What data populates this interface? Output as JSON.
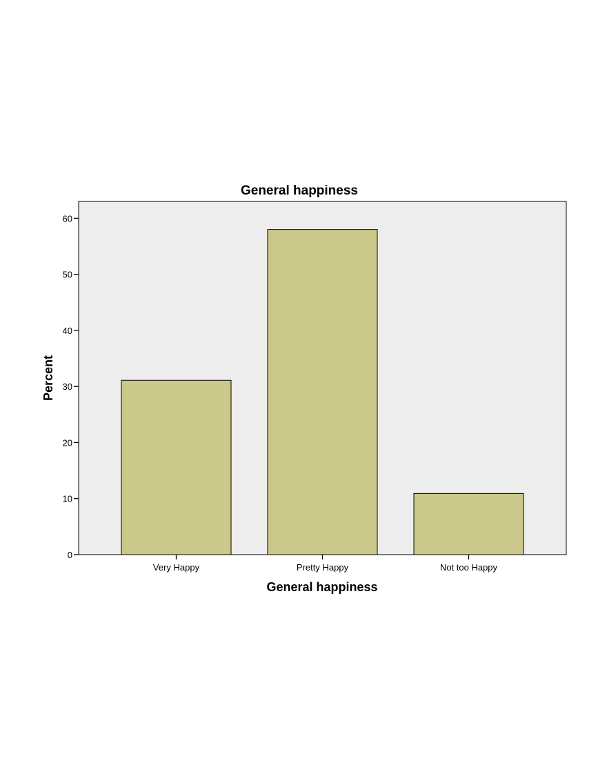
{
  "chart_data": {
    "type": "bar",
    "title": "General happiness",
    "xlabel": "General happiness",
    "ylabel": "Percent",
    "categories": [
      "Very Happy",
      "Pretty Happy",
      "Not too Happy"
    ],
    "values": [
      31.1,
      58.0,
      10.9
    ],
    "ylim": [
      0,
      63
    ],
    "yticks": [
      0,
      10,
      20,
      30,
      40,
      50,
      60
    ],
    "grid": false,
    "legend": "none",
    "colors": {
      "bar_fill": "#CCC78A",
      "bar_stroke": "#000000",
      "plot_background": "#EDEDED",
      "axis": "#000000"
    }
  }
}
